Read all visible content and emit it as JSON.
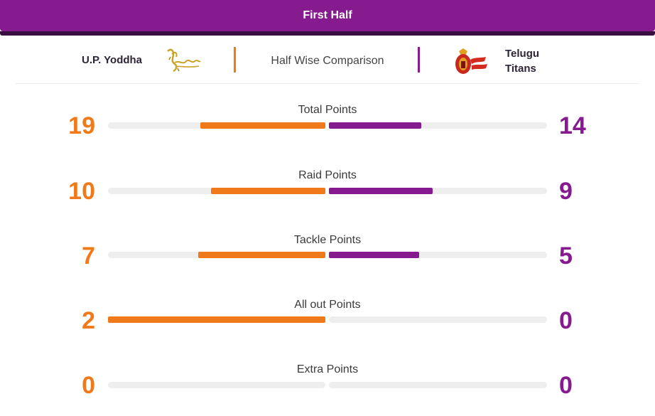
{
  "tab": {
    "label": "First Half"
  },
  "header": {
    "left_team": "U.P. Yoddha",
    "right_team": [
      "Telugu",
      "Titans"
    ],
    "compare_label": "Half Wise Comparison"
  },
  "colors": {
    "left_team": "#f07a1a",
    "right_team": "#861a8f",
    "track": "#eeeeee"
  },
  "icons": {
    "left_logo": "up-yoddha-logo-icon",
    "right_logo": "telugu-titans-logo-icon"
  },
  "stats": [
    {
      "label": "Total Points",
      "left": "19",
      "right": "14",
      "left_fill": 0.575,
      "right_fill": 0.425
    },
    {
      "label": "Raid Points",
      "left": "10",
      "right": "9",
      "left_fill": 0.525,
      "right_fill": 0.475
    },
    {
      "label": "Tackle Points",
      "left": "7",
      "right": "5",
      "left_fill": 0.585,
      "right_fill": 0.415
    },
    {
      "label": "All out Points",
      "left": "2",
      "right": "0",
      "left_fill": 1.0,
      "right_fill": 0.0
    },
    {
      "label": "Extra Points",
      "left": "0",
      "right": "0",
      "left_fill": 0.0,
      "right_fill": 0.0
    }
  ]
}
